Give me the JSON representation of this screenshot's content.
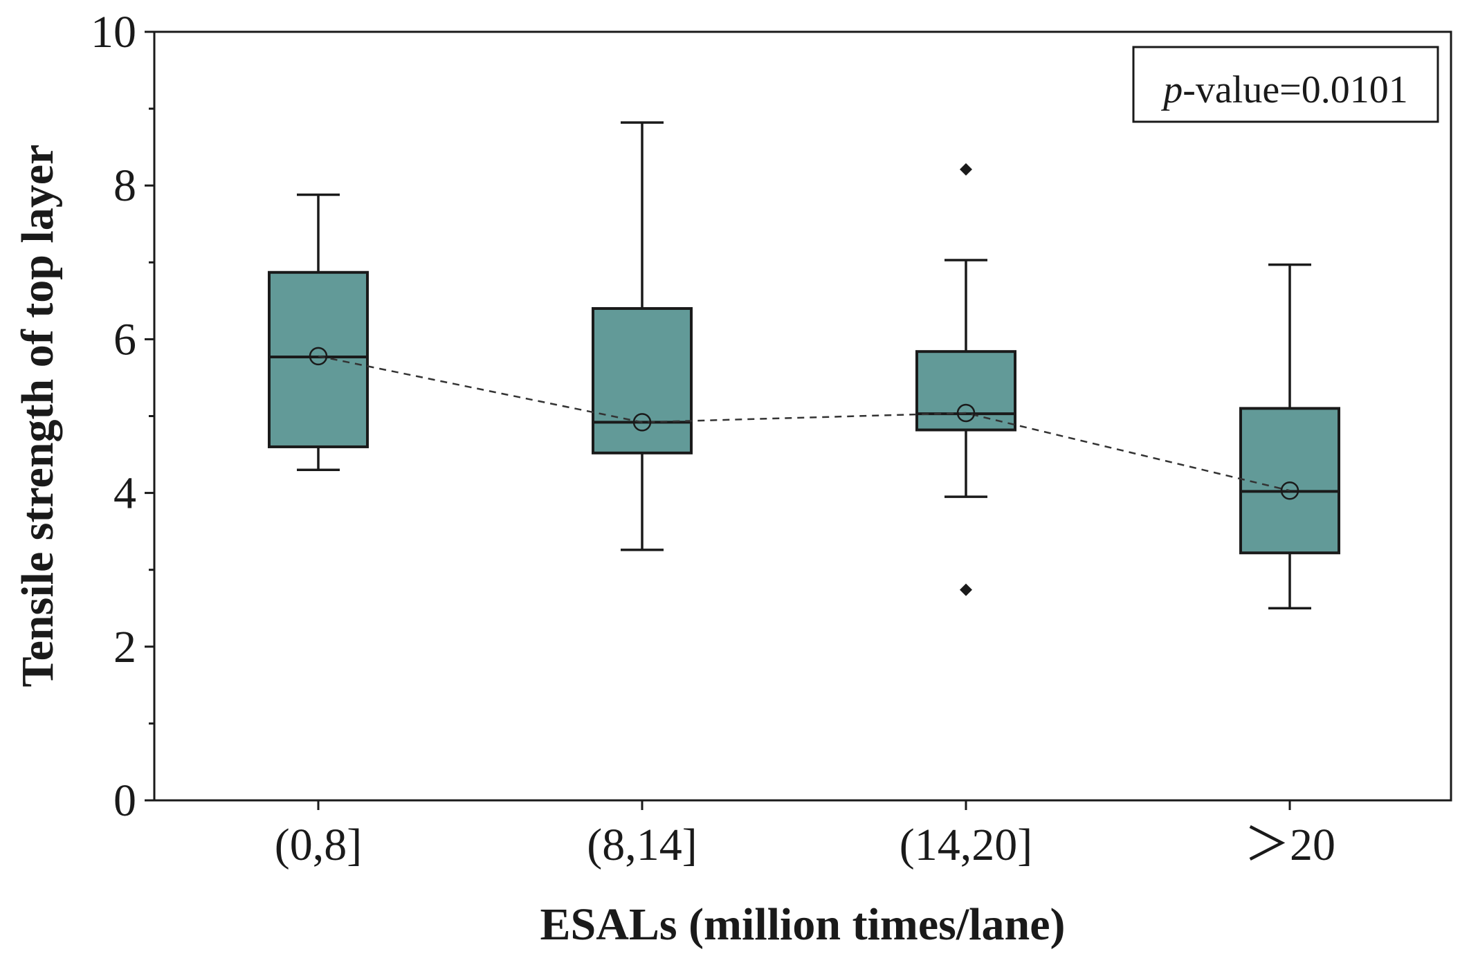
{
  "chart_data": {
    "type": "box",
    "xlabel": "ESALs (million times/lane)",
    "ylabel": "Tensile strength of top layer",
    "ylim": [
      0,
      10
    ],
    "yticks": [
      0,
      2,
      4,
      6,
      8,
      10
    ],
    "annotation": {
      "prefix": "p",
      "text": "-value=0.0101",
      "position": "top-right"
    },
    "box_color": "#629a98",
    "categories": [
      "(0,8]",
      "(8,14]",
      "(14,20]",
      "＞20"
    ],
    "groups": [
      {
        "category": "(0,8]",
        "min": 4.3,
        "q1": 4.6,
        "median": 5.77,
        "q3": 6.87,
        "max": 7.88,
        "mean": 5.78,
        "outliers": []
      },
      {
        "category": "(8,14]",
        "min": 3.26,
        "q1": 4.52,
        "median": 4.92,
        "q3": 6.4,
        "max": 8.82,
        "mean": 4.92,
        "outliers": []
      },
      {
        "category": "(14,20]",
        "min": 3.95,
        "q1": 4.82,
        "median": 5.03,
        "q3": 5.84,
        "max": 7.03,
        "mean": 5.04,
        "outliers": [
          8.21,
          2.74
        ]
      },
      {
        "category": "＞20",
        "min": 2.5,
        "q1": 3.22,
        "median": 4.02,
        "q3": 5.1,
        "max": 6.97,
        "mean": 4.03,
        "outliers": []
      }
    ]
  }
}
